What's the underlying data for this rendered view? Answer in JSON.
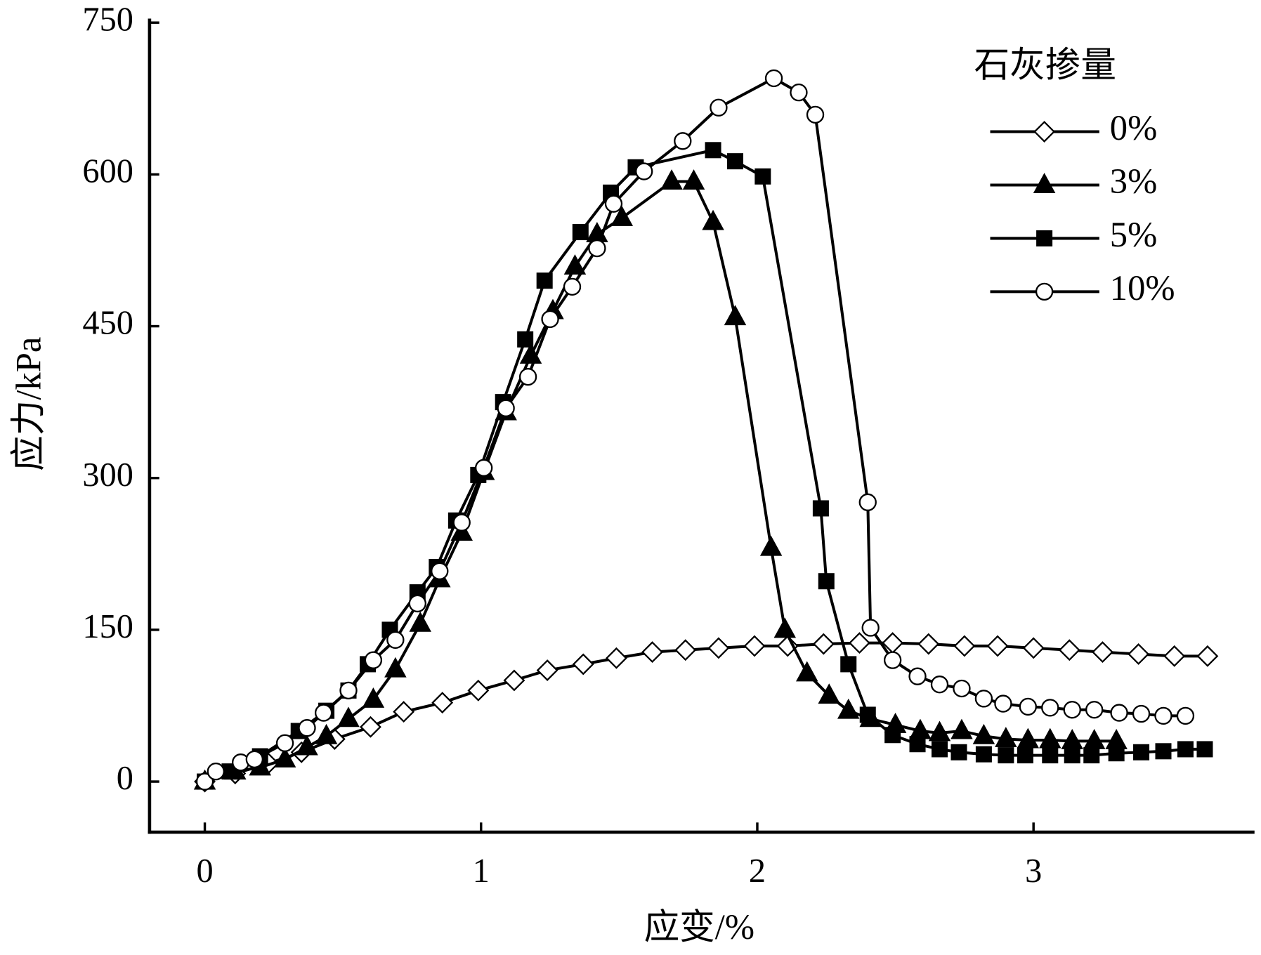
{
  "chart_data": {
    "type": "line",
    "xlabel": "应变/%",
    "ylabel": "应力/kPa",
    "xlim": [
      -0.2,
      3.8
    ],
    "ylim": [
      -50,
      750
    ],
    "xticks": [
      0,
      1,
      2,
      3
    ],
    "yticks": [
      0,
      150,
      300,
      450,
      600,
      750
    ],
    "legend_title": "石灰掺量",
    "legend": "upper right",
    "series": [
      {
        "name": "0%",
        "color": "#000000",
        "marker": "diamond",
        "filled": false,
        "x": [
          0,
          0.11,
          0.23,
          0.35,
          0.47,
          0.6,
          0.72,
          0.86,
          0.99,
          1.12,
          1.24,
          1.37,
          1.49,
          1.62,
          1.74,
          1.86,
          1.99,
          2.11,
          2.24,
          2.37,
          2.49,
          2.62,
          2.75,
          2.87,
          3.0,
          3.13,
          3.25,
          3.38,
          3.51,
          3.63
        ],
        "values": [
          0,
          8,
          18,
          29,
          42,
          54,
          69,
          78,
          90,
          100,
          110,
          116,
          122,
          128,
          130,
          132,
          134,
          134,
          136,
          137,
          137,
          136,
          134,
          134,
          132,
          130,
          128,
          126,
          124,
          124
        ]
      },
      {
        "name": "3%",
        "color": "#000000",
        "marker": "triangle",
        "filled": true,
        "x": [
          0,
          0.11,
          0.2,
          0.29,
          0.37,
          0.44,
          0.52,
          0.61,
          0.69,
          0.78,
          0.85,
          0.93,
          1.01,
          1.09,
          1.18,
          1.26,
          1.34,
          1.42,
          1.51,
          1.69,
          1.77,
          1.84,
          1.92,
          2.05,
          2.1,
          2.18,
          2.26,
          2.33,
          2.41,
          2.5,
          2.59,
          2.66,
          2.74,
          2.82,
          2.9,
          2.98,
          3.06,
          3.14,
          3.22,
          3.3
        ],
        "values": [
          0,
          10,
          14,
          22,
          34,
          45,
          62,
          81,
          111,
          156,
          200,
          246,
          306,
          365,
          421,
          465,
          509,
          541,
          557,
          593,
          593,
          553,
          459,
          231,
          150,
          107,
          85,
          70,
          62,
          56,
          50,
          48,
          50,
          45,
          42,
          41,
          41,
          40,
          40,
          40
        ]
      },
      {
        "name": "5%",
        "color": "#000000",
        "marker": "square",
        "filled": true,
        "x": [
          0,
          0.09,
          0.2,
          0.34,
          0.44,
          0.52,
          0.59,
          0.67,
          0.77,
          0.84,
          0.91,
          0.99,
          1.08,
          1.16,
          1.23,
          1.36,
          1.47,
          1.56,
          1.84,
          1.92,
          2.02,
          2.23,
          2.25,
          2.33,
          2.4,
          2.49,
          2.58,
          2.66,
          2.73,
          2.82,
          2.9,
          2.97,
          3.06,
          3.14,
          3.21,
          3.3,
          3.39,
          3.47,
          3.55,
          3.62
        ],
        "values": [
          0,
          10,
          25,
          50,
          70,
          90,
          116,
          150,
          187,
          212,
          258,
          303,
          375,
          437,
          495,
          543,
          582,
          607,
          624,
          613,
          598,
          270,
          198,
          116,
          66,
          46,
          37,
          32,
          29,
          27,
          26,
          26,
          26,
          26,
          26,
          28,
          29,
          30,
          32,
          32
        ]
      },
      {
        "name": "10%",
        "color": "#000000",
        "marker": "circle",
        "filled": false,
        "x": [
          0,
          0.04,
          0.13,
          0.18,
          0.29,
          0.37,
          0.43,
          0.52,
          0.61,
          0.69,
          0.77,
          0.85,
          0.93,
          1.01,
          1.09,
          1.17,
          1.25,
          1.33,
          1.42,
          1.48,
          1.59,
          1.73,
          1.86,
          2.06,
          2.15,
          2.21,
          2.4,
          2.41,
          2.49,
          2.58,
          2.66,
          2.74,
          2.82,
          2.89,
          2.98,
          3.06,
          3.14,
          3.22,
          3.31,
          3.39,
          3.47,
          3.55
        ],
        "values": [
          0,
          10,
          19,
          22,
          38,
          53,
          68,
          90,
          120,
          140,
          176,
          208,
          256,
          310,
          369,
          400,
          457,
          489,
          527,
          571,
          603,
          633,
          666,
          695,
          681,
          659,
          276,
          152,
          120,
          104,
          96,
          92,
          82,
          77,
          74,
          73,
          71,
          71,
          68,
          67,
          65,
          65
        ]
      }
    ]
  }
}
